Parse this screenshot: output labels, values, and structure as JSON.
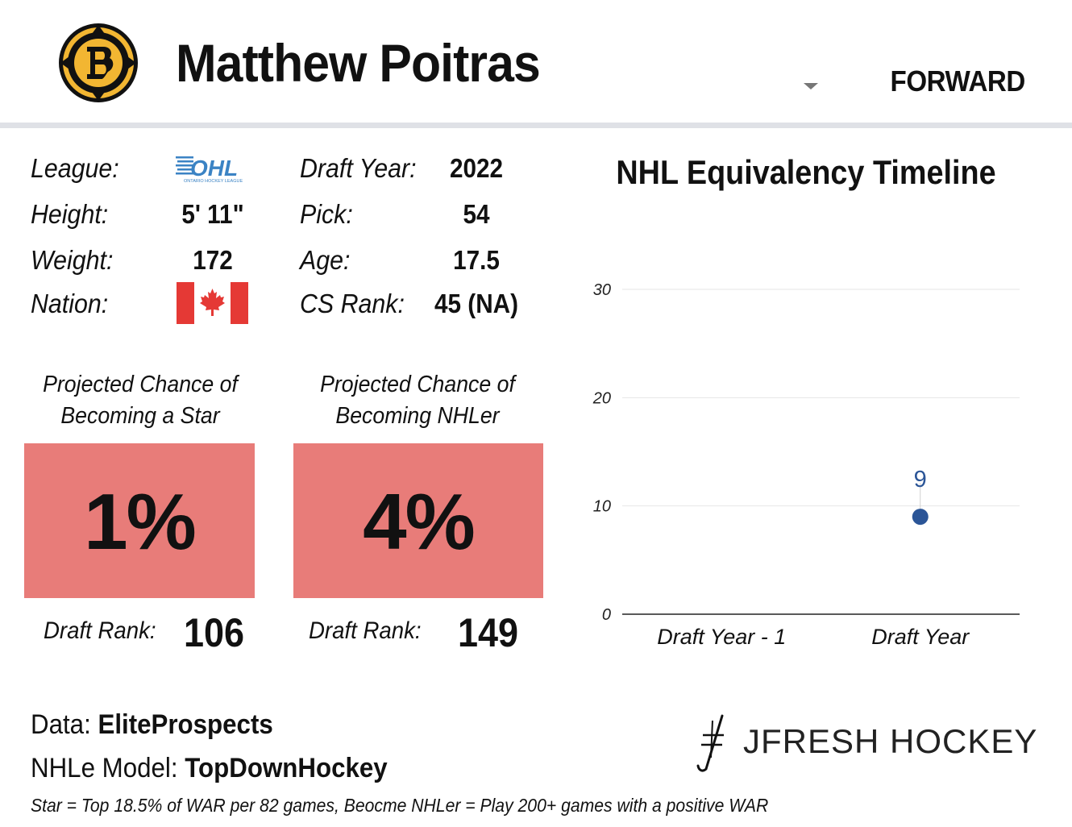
{
  "header": {
    "player_name": "Matthew Poitras",
    "position": "FORWARD",
    "team_logo_icon": "bruins-logo-icon",
    "dropdown_icon": "caret-down-icon"
  },
  "info_left": [
    {
      "label": "League:",
      "value": "",
      "icon": "ohl-logo-icon"
    },
    {
      "label": "Height:",
      "value": "5' 11\""
    },
    {
      "label": "Weight:",
      "value": "172"
    },
    {
      "label": "Nation:",
      "value": "",
      "icon": "canada-flag-icon"
    }
  ],
  "ohl_logo": {
    "mark": "OHL",
    "caption": "ONTARIO HOCKEY LEAGUE"
  },
  "info_right": [
    {
      "label": "Draft Year:",
      "value": "2022"
    },
    {
      "label": "Pick:",
      "value": "54"
    },
    {
      "label": "Age:",
      "value": "17.5"
    },
    {
      "label": "CS Rank:",
      "value": "45 (NA)"
    }
  ],
  "projections": [
    {
      "title_line1": "Projected Chance of",
      "title_line2": "Becoming a Star",
      "value": "1%",
      "rank_label": "Draft Rank:",
      "rank_value": "106"
    },
    {
      "title_line1": "Projected Chance of",
      "title_line2": "Becoming NHLer",
      "value": "4%",
      "rank_label": "Draft Rank:",
      "rank_value": "149"
    }
  ],
  "colors": {
    "projection_box": "#e87c79",
    "point": "#2b5597",
    "divider": "#dfe1e6"
  },
  "chart_data": {
    "type": "scatter",
    "title": "NHL Equivalency Timeline",
    "categories": [
      "Draft Year - 1",
      "Draft Year"
    ],
    "series": [
      {
        "values": [
          null,
          9
        ],
        "data_labels": [
          "",
          "9"
        ]
      }
    ],
    "yticks": [
      "0",
      "10",
      "20",
      "30"
    ],
    "ylim": [
      0,
      30
    ],
    "grid": true,
    "legend": "none"
  },
  "footer": {
    "data_label": "Data: ",
    "data_source": "EliteProspects",
    "model_label": "NHLe Model: ",
    "model_source": "TopDownHockey",
    "footnote": "Star = Top 18.5% of WAR per 82 games, Beocme NHLer = Play 200+ games with a positive WAR",
    "brand": "JFRESH HOCKEY",
    "brand_icon": "jfresh-logo-icon"
  }
}
